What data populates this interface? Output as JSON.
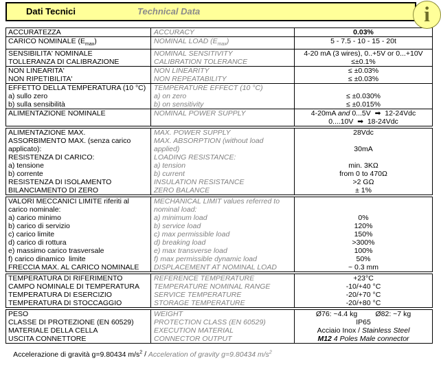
{
  "banner": {
    "title_it": "Dati Tecnici",
    "title_en": "Technical Data"
  },
  "info_icon": {
    "glyph": "i"
  },
  "colors": {
    "banner_yellow": "#FFFF99",
    "border_black": "#000000",
    "english_gray": "#808080",
    "info_olive": "#6E6E28"
  },
  "table": {
    "columns": [
      "italian-label",
      "english-label",
      "value"
    ],
    "groups": [
      {
        "rows": [
          {
            "lines": [
              {
                "it": "ACCURATEZZA",
                "en": "ACCURACY",
                "val": "0.03%",
                "valBold": true
              }
            ]
          },
          {
            "lines": [
              {
                "it": "CARICO NOMINALE (E_{max})",
                "en": "NOMINAL LOAD (E_{max})",
                "val": "5 - 7.5 - 10 - 15 - 20t"
              }
            ]
          },
          {
            "lines": [
              {
                "it": "SENSIBILITA' NOMINALE",
                "en": "NOMINAL SENSITIVITY",
                "val": "4-20 mA (3 wires), 0..+5V or 0...+10V"
              },
              {
                "it": "TOLLERANZA DI CALIBRAZIONE",
                "en": "CALIBRATION TOLERANCE",
                "val": "≤±0.1%"
              }
            ]
          },
          {
            "lines": [
              {
                "it": "NON LINEARITA'",
                "en": "NON LINEARITY",
                "val": "≤ ±0.03%"
              },
              {
                "it": "NON RIPETIBILITA'",
                "en": "NON REPEATABILITY",
                "val": "≤ ±0.03%"
              }
            ]
          },
          {
            "lines": [
              {
                "it": "EFFETTO DELLA TEMPERATURA (10 °C)",
                "en": "TEMPERATURE EFFECT (10 °C)",
                "val": ""
              },
              {
                "it": "a) sullo zero",
                "en": "a) on zero",
                "val": "≤ ±0.030%"
              },
              {
                "it": "b) sulla sensibilità",
                "en": "b) on sensitivity",
                "val": "≤ ±0.015%"
              }
            ]
          },
          {
            "lines": [
              {
                "it": "ALIMENTAZIONE NOMINALE",
                "en": "NOMINAL POWER SUPPLY",
                "val": "4-20mA *and* 0...5V  ➡  12-24Vdc"
              },
              {
                "it": "",
                "en": "",
                "val": "0....10V  ➡  18-24Vdc"
              }
            ]
          }
        ]
      },
      {
        "rows": [
          {
            "lines": [
              {
                "it": "ALIMENTAZIONE MAX.",
                "en": "MAX. POWER SUPPLY",
                "val": "28Vdc"
              },
              {
                "it": "ASSORBIMENTO MAX. (senza carico",
                "en": "MAX. ABSORPTION (without load",
                "val": ""
              },
              {
                "it": "applicato):",
                "en": "applied)",
                "val": "30mA"
              },
              {
                "it": "RESISTENZA DI CARICO:",
                "en": "LOADING RESISTANCE:",
                "val": ""
              },
              {
                "it": "a) tensione",
                "en": "a) tension",
                "val": "min. 3KΩ"
              },
              {
                "it": "b) corrente",
                "en": "b) current",
                "val": "from 0 to 470Ω"
              },
              {
                "it": "RESISTENZA DI ISOLAMENTO",
                "en": "INSULATION RESISTANCE",
                "val": ">2 GΩ"
              },
              {
                "it": "BILANCIAMENTO DI ZERO",
                "en": "ZERO BALANCE",
                "val": "± 1%"
              }
            ]
          }
        ]
      },
      {
        "rows": [
          {
            "lines": [
              {
                "it": "VALORI MECCANICI LIMITE riferiti al",
                "en": "MECHANICAL LIMIT values referred to",
                "val": ""
              },
              {
                "it": "carico nominale:",
                "en": "nominal load:",
                "val": ""
              },
              {
                "it": "a) carico minimo",
                "en": "a) minimum load",
                "val": "0%"
              },
              {
                "it": "b) carico di servizio",
                "en": "b) service load",
                "val": "120%"
              },
              {
                "it": "c) carico limite",
                "en": "c) max permissible load",
                "val": "150%"
              },
              {
                "it": "d) carico di rottura",
                "en": "d) breaking load",
                "val": ">300%"
              },
              {
                "it": "e) massimo carico trasversale",
                "en": "e) max transverse load",
                "val": "100%"
              },
              {
                "it": "f) carico dinamico  limite",
                "en": "f) max permissible dynamic load",
                "val": "50%"
              },
              {
                "it": "FRECCIA MAX. AL CARICO NOMINALE",
                "en": "DISPLACEMENT AT NOMINAL LOAD",
                "val": "~ 0.3 mm"
              }
            ]
          }
        ]
      },
      {
        "rows": [
          {
            "lines": [
              {
                "it": "TEMPERATURA DI RIFERIMENTO",
                "en": "REFERENCE TEMPERATURE",
                "val": "+23°C"
              },
              {
                "it": "CAMPO NOMINALE DI TEMPERATURA",
                "en": "TEMPERATURE NOMINAL RANGE",
                "val": "-10/+40 °C"
              },
              {
                "it": "TEMPERATURA DI ESERCIZIO",
                "en": "SERVICE TEMPERATURE",
                "val": "-20/+70 °C"
              },
              {
                "it": "TEMPERATURA DI STOCCAGGIO",
                "en": "STORAGE TEMPERATURE",
                "val": "-20/+80 °C"
              }
            ]
          }
        ]
      },
      {
        "rows": [
          {
            "lines": [
              {
                "it": "PESO",
                "en": "WEIGHT",
                "val": "Ø76: ~4.4 kg         Ø82: ~7 kg"
              },
              {
                "it": "CLASSE DI PROTEZIONE (EN 60529)",
                "en": "PROTECTION CLASS (EN 60529)",
                "val": "IP65"
              },
              {
                "it": "MATERIALE DELLA CELLA",
                "en": "EXECUTION MATERIAL",
                "val": "Acciaio Inox / *Stainless Steel*"
              },
              {
                "it": "USCITA CONNETTORE",
                "en": "CONNECTOR OUTPUT",
                "val": "**M12** 4 Poles Male connector",
                "valItalic": true
              }
            ]
          }
        ]
      }
    ]
  },
  "footer": {
    "it": "Accelerazione di gravità g=9.80434 m/s^{2}",
    "separator": " / ",
    "en": "Acceleration of gravity g=9.80434 m/s^{2}"
  }
}
